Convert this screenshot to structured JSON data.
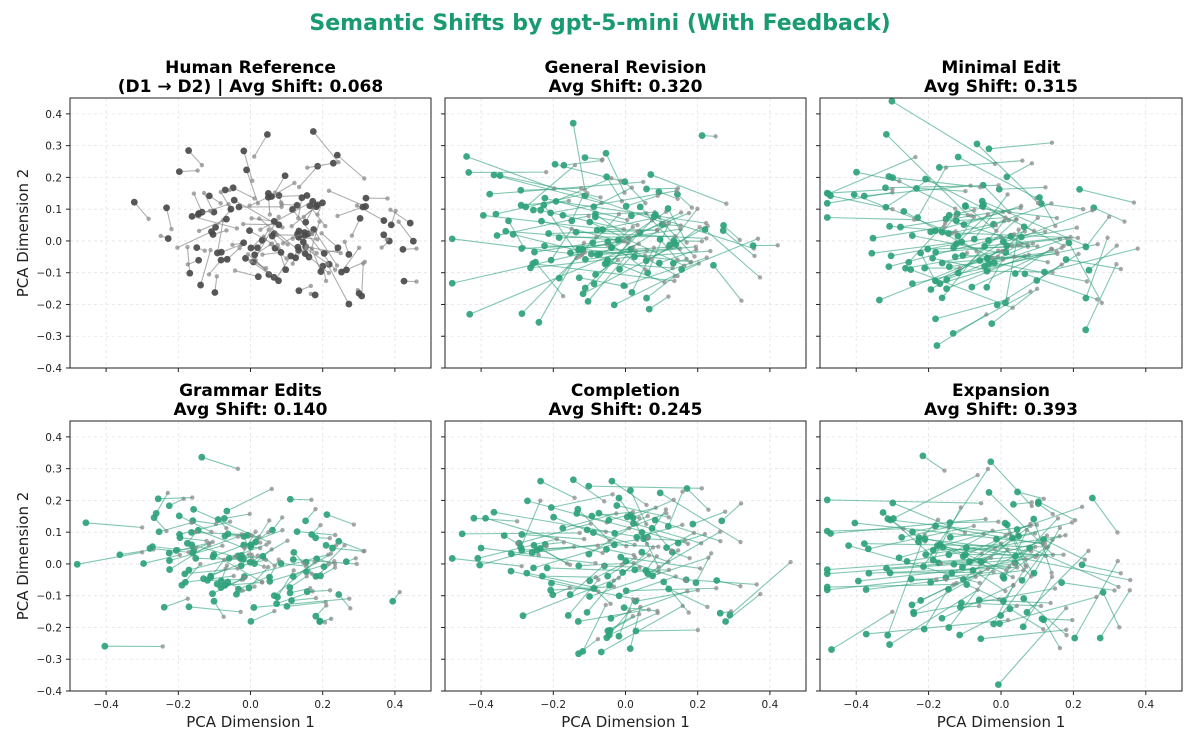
{
  "figure": {
    "title": "Semantic Shifts by gpt-5-mini (With Feedback)",
    "title_color": "#1a9a73",
    "accent_color": "#2ea27b",
    "reference_color": "#4a4a4a",
    "origin_color": "#8c8c8c"
  },
  "chart_data": [
    {
      "type": "scatter",
      "panel": "human-reference",
      "title_lines": [
        "Human Reference",
        "(D1 → D2) | Avg Shift: 0.068"
      ],
      "avg_shift": 0.068,
      "xlabel": "",
      "ylabel": "PCA Dimension 2",
      "xlim": [
        -0.5,
        0.5
      ],
      "ylim": [
        -0.4,
        0.45
      ],
      "xticks": [],
      "xtick_labels": [],
      "yticks": [
        -0.4,
        -0.3,
        -0.2,
        -0.1,
        0.0,
        0.1,
        0.2,
        0.3,
        0.4
      ],
      "ytick_labels": [
        "−0.4",
        "−0.3",
        "−0.2",
        "−0.1",
        "0.0",
        "0.1",
        "0.2",
        "0.3",
        "0.4"
      ],
      "grid": true,
      "shift_scale": 0.15,
      "n_points": 110,
      "seed": 11
    },
    {
      "type": "scatter",
      "panel": "general-revision",
      "title_lines": [
        "General Revision",
        "Avg Shift: 0.320"
      ],
      "avg_shift": 0.32,
      "xlabel": "",
      "ylabel": "",
      "xlim": [
        -0.5,
        0.5
      ],
      "ylim": [
        -0.4,
        0.45
      ],
      "xticks": [],
      "xtick_labels": [],
      "yticks": [],
      "ytick_labels": [],
      "grid": true,
      "shift_scale": 1.0,
      "n_points": 110,
      "seed": 23
    },
    {
      "type": "scatter",
      "panel": "minimal-edit",
      "title_lines": [
        "Minimal Edit",
        "Avg Shift: 0.315"
      ],
      "avg_shift": 0.315,
      "xlabel": "",
      "ylabel": "",
      "xlim": [
        -0.5,
        0.5
      ],
      "ylim": [
        -0.4,
        0.45
      ],
      "xticks": [],
      "xtick_labels": [],
      "yticks": [],
      "ytick_labels": [],
      "grid": true,
      "shift_scale": 0.98,
      "n_points": 110,
      "seed": 37
    },
    {
      "type": "scatter",
      "panel": "grammar-edits",
      "title_lines": [
        "Grammar Edits",
        "Avg Shift: 0.140"
      ],
      "avg_shift": 0.14,
      "xlabel": "PCA Dimension 1",
      "ylabel": "PCA Dimension 2",
      "xlim": [
        -0.5,
        0.5
      ],
      "ylim": [
        -0.4,
        0.45
      ],
      "xticks": [
        -0.4,
        -0.2,
        0.0,
        0.2,
        0.4
      ],
      "xtick_labels": [
        "−0.4",
        "−0.2",
        "0.0",
        "0.2",
        "0.4"
      ],
      "yticks": [
        -0.4,
        -0.3,
        -0.2,
        -0.1,
        0.0,
        0.1,
        0.2,
        0.3,
        0.4
      ],
      "ytick_labels": [
        "−0.4",
        "−0.3",
        "−0.2",
        "−0.1",
        "0.0",
        "0.1",
        "0.2",
        "0.3",
        "0.4"
      ],
      "grid": true,
      "shift_scale": 0.45,
      "n_points": 110,
      "seed": 41
    },
    {
      "type": "scatter",
      "panel": "completion",
      "title_lines": [
        "Completion",
        "Avg Shift: 0.245"
      ],
      "avg_shift": 0.245,
      "xlabel": "PCA Dimension 1",
      "ylabel": "",
      "xlim": [
        -0.5,
        0.5
      ],
      "ylim": [
        -0.4,
        0.45
      ],
      "xticks": [
        -0.4,
        -0.2,
        0.0,
        0.2,
        0.4
      ],
      "xtick_labels": [
        "−0.4",
        "−0.2",
        "0.0",
        "0.2",
        "0.4"
      ],
      "yticks": [],
      "ytick_labels": [],
      "grid": true,
      "shift_scale": 0.78,
      "n_points": 110,
      "seed": 53
    },
    {
      "type": "scatter",
      "panel": "expansion",
      "title_lines": [
        "Expansion",
        "Avg Shift: 0.393"
      ],
      "avg_shift": 0.393,
      "xlabel": "PCA Dimension 1",
      "ylabel": "",
      "xlim": [
        -0.5,
        0.5
      ],
      "ylim": [
        -0.4,
        0.45
      ],
      "xticks": [
        -0.4,
        -0.2,
        0.0,
        0.2,
        0.4
      ],
      "xtick_labels": [
        "−0.4",
        "−0.2",
        "0.0",
        "0.2",
        "0.4"
      ],
      "yticks": [],
      "ytick_labels": [],
      "grid": true,
      "shift_scale": 1.2,
      "n_points": 110,
      "seed": 67
    }
  ]
}
